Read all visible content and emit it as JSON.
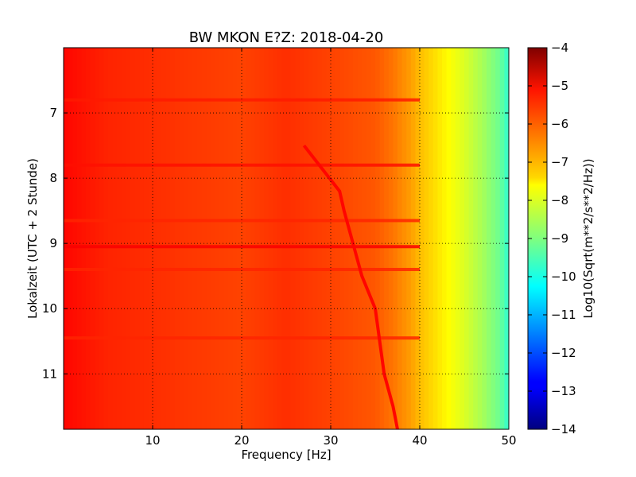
{
  "chart_data": {
    "type": "heatmap",
    "title": "BW MKON E?Z: 2018-04-20",
    "xlabel": "Frequency [Hz]",
    "ylabel": "Lokalzeit (UTC + 2 Stunde)",
    "colorbar_label": "Log10(Sqrt(m**2/s**2/Hz))",
    "xlim": [
      0,
      50
    ],
    "ylim": [
      6.0,
      11.85
    ],
    "y_inverted": true,
    "clim": [
      -14,
      -4
    ],
    "colormap": "jet",
    "grid": true,
    "x_ticks": [
      10,
      20,
      30,
      40,
      50
    ],
    "x_tick_labels": [
      "10",
      "20",
      "30",
      "40",
      "50"
    ],
    "y_ticks": [
      7,
      8,
      9,
      10,
      11
    ],
    "y_tick_labels": [
      "7",
      "8",
      "9",
      "10",
      "11"
    ],
    "colorbar_ticks": [
      -4,
      -5,
      -6,
      -7,
      -8,
      -9,
      -10,
      -11,
      -12,
      -13,
      -14
    ],
    "colorbar_tick_labels": [
      "−4",
      "−5",
      "−6",
      "−7",
      "−8",
      "−9",
      "−10",
      "−11",
      "−12",
      "−13",
      "−14"
    ],
    "spectrum_profile": {
      "frequency_hz": [
        0,
        5,
        10,
        20,
        25,
        30,
        35,
        37,
        39,
        40,
        41,
        43,
        45,
        47,
        49,
        50
      ],
      "log10_amplitude": [
        -5.3,
        -5.6,
        -5.7,
        -5.9,
        -5.7,
        -5.9,
        -6.1,
        -6.4,
        -6.8,
        -7.1,
        -7.3,
        -7.7,
        -8.1,
        -8.6,
        -9.2,
        -9.8
      ]
    },
    "horizontal_bands": [
      {
        "time": 6.8,
        "log10_amplitude": -5.5
      },
      {
        "time": 7.8,
        "log10_amplitude": -5.4
      },
      {
        "time": 8.65,
        "log10_amplitude": -5.6
      },
      {
        "time": 9.05,
        "log10_amplitude": -5.2
      },
      {
        "time": 9.4,
        "log10_amplitude": -5.6
      },
      {
        "time": 10.45,
        "log10_amplitude": -5.6
      }
    ],
    "drifting_line": {
      "time": [
        7.5,
        8.2,
        8.5,
        9.0,
        9.5,
        10.0,
        10.5,
        11.0,
        11.5,
        11.85
      ],
      "frequency_hz": [
        27.0,
        31.0,
        31.5,
        32.5,
        33.5,
        35.0,
        35.5,
        36.0,
        37.0,
        37.5
      ],
      "log10_amplitude": -5.3
    }
  }
}
